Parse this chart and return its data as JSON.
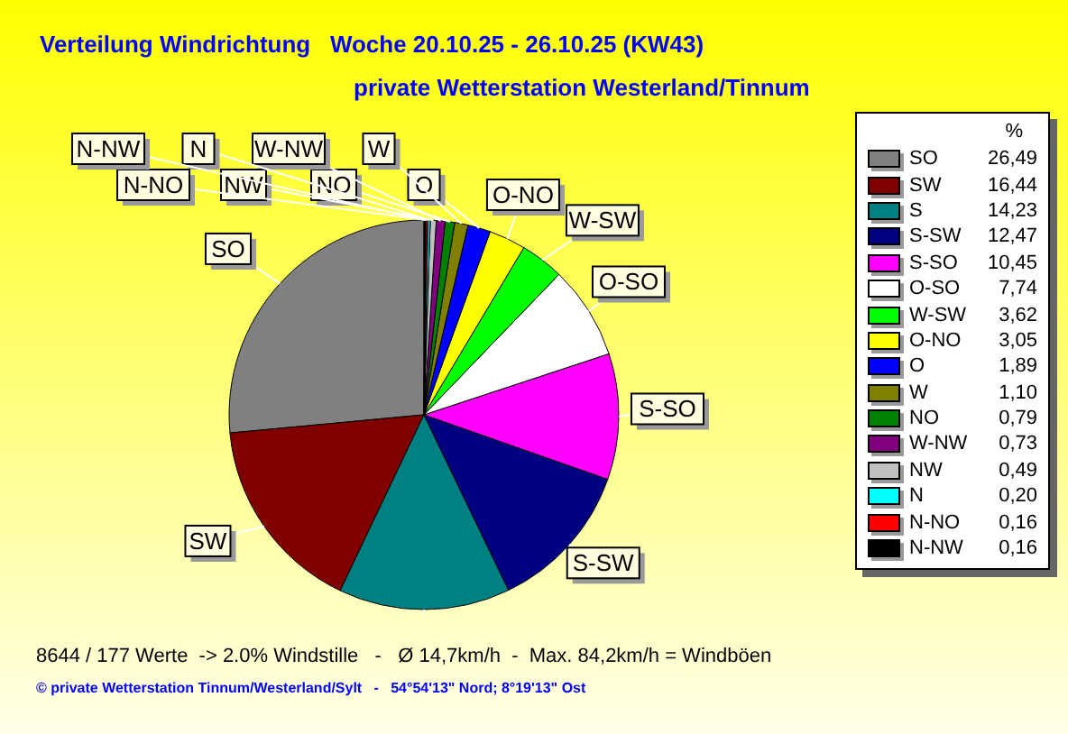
{
  "chart_data": {
    "type": "pie",
    "title": "Verteilung Windrichtung   Woche 20.10.25 - 26.10.25 (KW43)",
    "subtitle": "private Wetterstation Westerland/Tinnum",
    "legend_title": "%",
    "legend": "right",
    "categories": [
      "SO",
      "SW",
      "S",
      "S-SW",
      "S-SO",
      "O-SO",
      "W-SW",
      "O-NO",
      "O",
      "W",
      "NO",
      "W-NW",
      "NW",
      "N",
      "N-NO",
      "N-NW"
    ],
    "values": [
      26.49,
      16.44,
      14.23,
      12.47,
      10.45,
      7.74,
      3.62,
      3.05,
      1.89,
      1.1,
      0.79,
      0.73,
      0.49,
      0.2,
      0.16,
      0.16
    ],
    "value_labels": [
      "26,49",
      "16,44",
      "14,23",
      "12,47",
      "10,45",
      "7,74",
      "3,62",
      "3,05",
      "1,89",
      "1,10",
      "0,79",
      "0,73",
      "0,49",
      "0,20",
      "0,16",
      "0,16"
    ],
    "colors": [
      "#808080",
      "#800000",
      "#008080",
      "#000080",
      "#ff00ff",
      "#ffffff",
      "#00ff00",
      "#ffff00",
      "#0000ff",
      "#808000",
      "#008000",
      "#800080",
      "#c0c0c0",
      "#00ffff",
      "#ff0000",
      "#000000"
    ],
    "annotations": [
      "8644 / 177 Werte  -> 2.0% Windstille   -   Ø 14,7km/h  -  Max. 84,2km/h = Windböen",
      "© private Wetterstation Tinnum/Westerland/Sylt   -   54°54'13\" Nord; 8°19'13\" Ost"
    ]
  }
}
